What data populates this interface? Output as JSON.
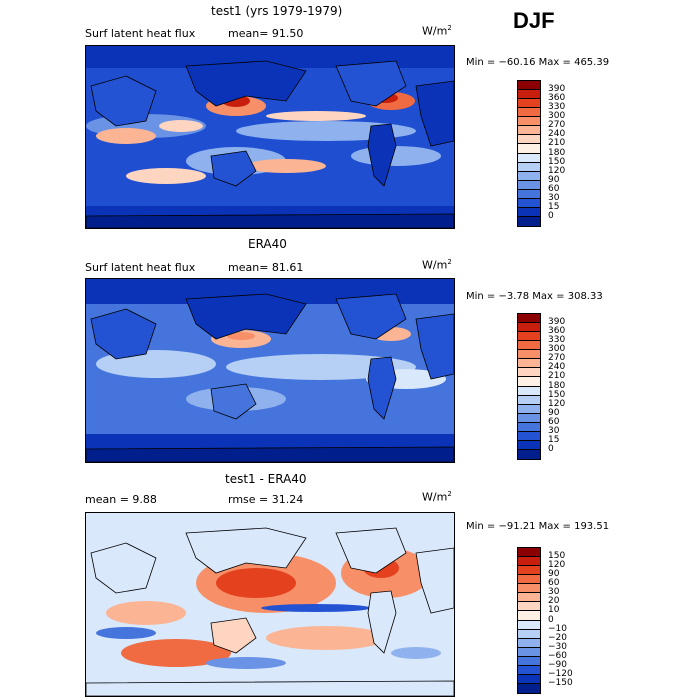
{
  "season": "DJF",
  "panels": [
    {
      "title": "test1 (yrs 1979-1979)",
      "left_label": "Surf latent heat flux",
      "mid_label": "mean=  91.50",
      "units_base": "W/m",
      "units_exp": "2",
      "minmax": "Min = −60.16  Max = 465.39",
      "colorbar_labels": [
        "390",
        "360",
        "330",
        "300",
        "270",
        "240",
        "210",
        "180",
        "150",
        "120",
        "90",
        "60",
        "30",
        "15",
        "0"
      ],
      "colorbar_colors": [
        "#8b0000",
        "#c81e0e",
        "#e4421f",
        "#f06a42",
        "#f79068",
        "#fbb494",
        "#fdd5c0",
        "#fff0e6",
        "#d9e8fb",
        "#b5cff5",
        "#8fb2ee",
        "#6a93e6",
        "#4574dc",
        "#2353d2",
        "#0a33b8",
        "#001f8c"
      ]
    },
    {
      "title": "ERA40",
      "left_label": "Surf latent heat flux",
      "mid_label": "mean=  81.61",
      "units_base": "W/m",
      "units_exp": "2",
      "minmax": "Min =  −3.78  Max = 308.33",
      "colorbar_labels": [
        "390",
        "360",
        "330",
        "300",
        "270",
        "240",
        "210",
        "180",
        "150",
        "120",
        "90",
        "60",
        "30",
        "15",
        "0"
      ],
      "colorbar_colors": [
        "#8b0000",
        "#c81e0e",
        "#e4421f",
        "#f06a42",
        "#f79068",
        "#fbb494",
        "#fdd5c0",
        "#fff0e6",
        "#d9e8fb",
        "#b5cff5",
        "#8fb2ee",
        "#6a93e6",
        "#4574dc",
        "#2353d2",
        "#0a33b8",
        "#001f8c"
      ]
    },
    {
      "title": "test1 - ERA40",
      "left_label": "mean =    9.88",
      "mid_label": "rmse =  31.24",
      "units_base": "W/m",
      "units_exp": "2",
      "minmax": "Min = −91.21  Max = 193.51",
      "colorbar_labels": [
        "150",
        "120",
        "90",
        "60",
        "30",
        "20",
        "10",
        "0",
        "−10",
        "−20",
        "−30",
        "−60",
        "−90",
        "−120",
        "−150"
      ],
      "colorbar_colors": [
        "#8b0000",
        "#c81e0e",
        "#e4421f",
        "#f06a42",
        "#f79068",
        "#fbb494",
        "#fdd5c0",
        "#fff0e6",
        "#d9e8fb",
        "#b5cff5",
        "#8fb2ee",
        "#6a93e6",
        "#4574dc",
        "#2353d2",
        "#0a33b8",
        "#001f8c"
      ]
    }
  ]
}
